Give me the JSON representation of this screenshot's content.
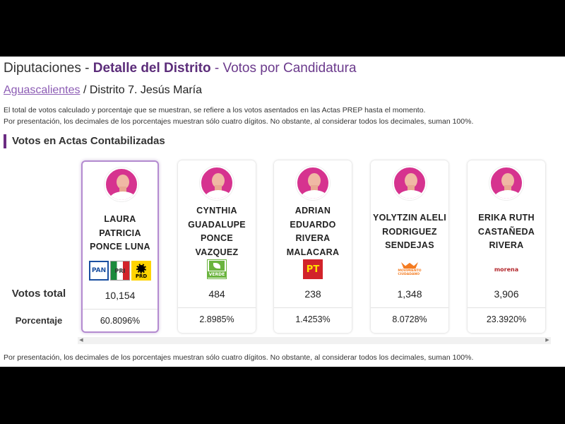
{
  "header": {
    "title_part1": "Diputaciones - ",
    "title_part2": "Detalle del Distrito",
    "title_part3": " - Votos por Candidatura"
  },
  "breadcrumb": {
    "state_link": "Aguascalientes",
    "separator_district": " / Distrito 7.  Jesús María"
  },
  "notes": {
    "line1": "El total de votos calculado y porcentaje que se muestran, se refiere a los votos asentados en las Actas PREP hasta el momento.",
    "line2": "Por presentación, los decimales de los porcentajes muestran sólo cuatro dígitos. No obstante, al considerar todos los decimales, suman 100%.",
    "footer": "Por presentación, los decimales de los porcentajes muestran sólo cuatro dígitos. No obstante, al considerar todos los decimales, suman 100%."
  },
  "section": {
    "title": "Votos en Actas Contabilizadas",
    "row_votes_label": "Votos total",
    "row_pct_label": "Porcentaje"
  },
  "candidates": [
    {
      "name_lines": [
        "LAURA",
        "PATRICIA",
        "PONCE LUNA"
      ],
      "parties": [
        "PAN",
        "PRI",
        "PRD"
      ],
      "votes": "10,154",
      "percentage": "60.8096%",
      "selected": true
    },
    {
      "name_lines": [
        "CYNTHIA",
        "GUADALUPE",
        "PONCE",
        "VAZQUEZ"
      ],
      "parties": [
        "VERDE"
      ],
      "votes": "484",
      "percentage": "2.8985%",
      "selected": false
    },
    {
      "name_lines": [
        "ADRIAN",
        "EDUARDO",
        "RIVERA",
        "MALACARA"
      ],
      "parties": [
        "PT"
      ],
      "votes": "238",
      "percentage": "1.4253%",
      "selected": false
    },
    {
      "name_lines": [
        "YOLYTZIN ALELI",
        "RODRIGUEZ",
        "SENDEJAS"
      ],
      "parties": [
        "MOVIMIENTO CIUDADANO"
      ],
      "votes": "1,348",
      "percentage": "8.0728%",
      "selected": false
    },
    {
      "name_lines": [
        "ERIKA RUTH",
        "CASTAÑEDA",
        "RIVERA"
      ],
      "parties": [
        "morena"
      ],
      "votes": "3,906",
      "percentage": "23.3920%",
      "selected": false
    }
  ],
  "party_logos": {
    "PAN": {
      "text": "PAN",
      "icon": "pan-logo-icon"
    },
    "PRI": {
      "text": "PRI",
      "icon": "pri-logo-icon"
    },
    "PRD": {
      "text": "PRD",
      "icon": "prd-logo-icon"
    },
    "VERDE": {
      "text": "VERDE",
      "icon": "verde-logo-icon"
    },
    "PT": {
      "text": "PT",
      "icon": "pt-logo-icon"
    },
    "MC": {
      "text": "MOVIMIENTO CIUDADANO",
      "icon": "mc-logo-icon"
    },
    "MORENA": {
      "text": "morena",
      "icon": "morena-logo-icon"
    }
  },
  "colors": {
    "accent": "#5c2d7a",
    "link": "#8c5cb4",
    "avatar_bg": "#d6338f",
    "selected_border": "#b48bd0"
  }
}
